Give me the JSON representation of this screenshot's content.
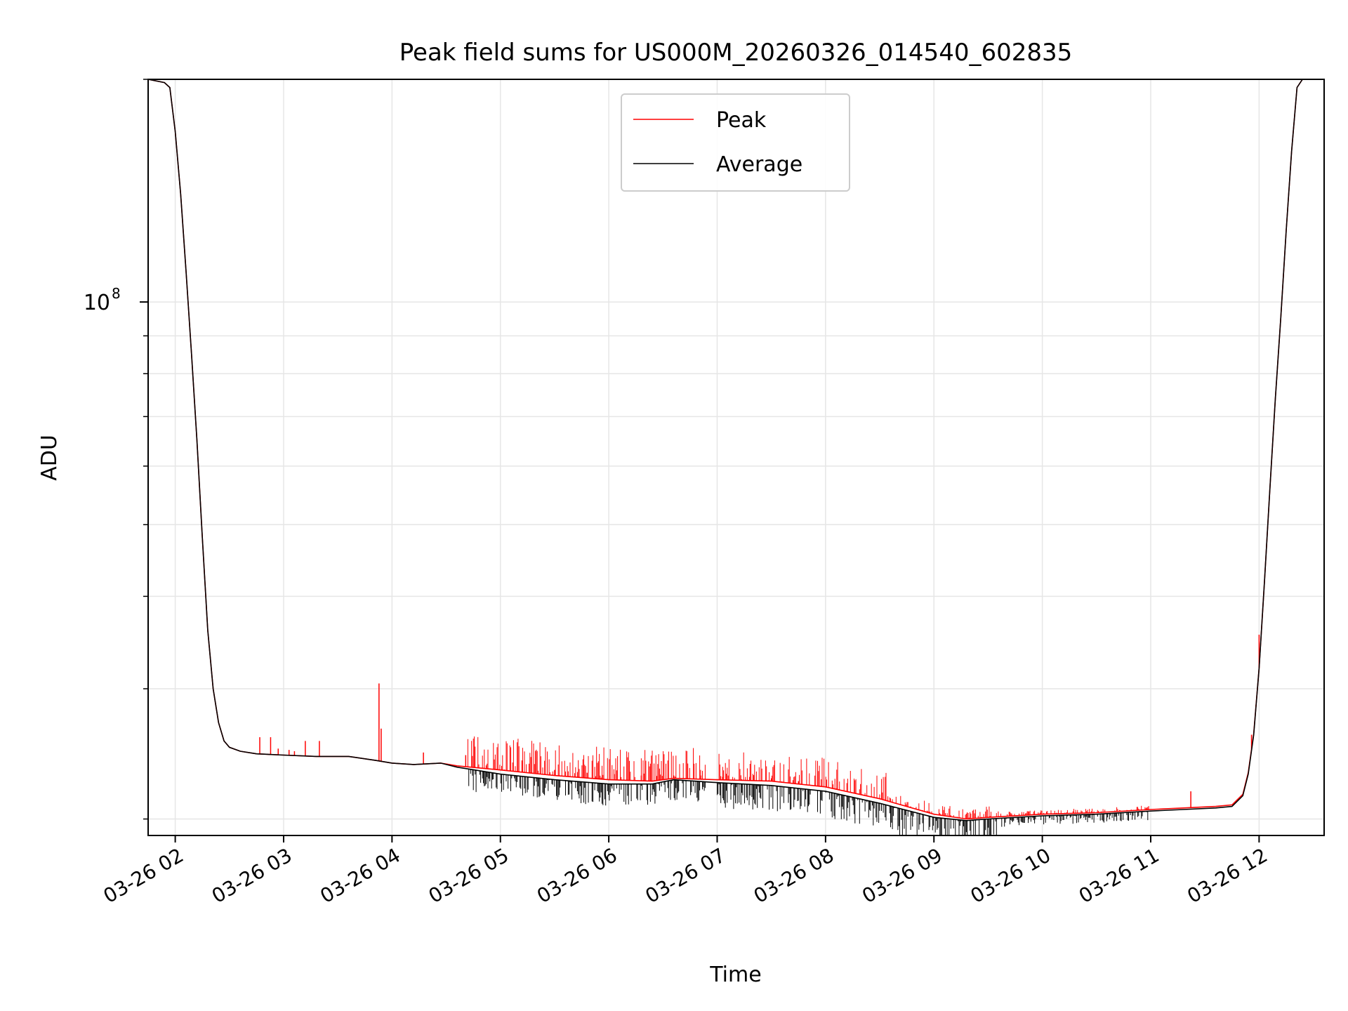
{
  "chart_data": {
    "type": "line",
    "title": "Peak field sums for US000M_20260326_014540_602835",
    "xlabel": "Time",
    "ylabel": "ADU",
    "yscale": "log",
    "ylim": [
      19000000,
      200000000
    ],
    "xlim": [
      1.75,
      12.6
    ],
    "grid": true,
    "legend_position": "upper center",
    "x_ticks": [
      {
        "value": 2,
        "label": "03-26 02"
      },
      {
        "value": 3,
        "label": "03-26 03"
      },
      {
        "value": 4,
        "label": "03-26 04"
      },
      {
        "value": 5,
        "label": "03-26 05"
      },
      {
        "value": 6,
        "label": "03-26 06"
      },
      {
        "value": 7,
        "label": "03-26 07"
      },
      {
        "value": 8,
        "label": "03-26 08"
      },
      {
        "value": 9,
        "label": "03-26 09"
      },
      {
        "value": 10,
        "label": "03-26 10"
      },
      {
        "value": 11,
        "label": "03-26 11"
      },
      {
        "value": 12,
        "label": "03-26 12"
      }
    ],
    "y_major_ticks": [
      {
        "value": 100000000,
        "label": "10",
        "exponent": "8"
      }
    ],
    "y_minor_ticks": [
      20000000,
      30000000,
      40000000,
      50000000,
      60000000,
      70000000,
      80000000,
      90000000,
      200000000
    ],
    "series": [
      {
        "name": "Average",
        "color": "#000000",
        "x": [
          1.75,
          1.9,
          1.95,
          2.0,
          2.05,
          2.1,
          2.15,
          2.2,
          2.25,
          2.3,
          2.35,
          2.4,
          2.45,
          2.5,
          2.6,
          2.75,
          3.0,
          3.3,
          3.6,
          3.85,
          4.0,
          4.2,
          4.45,
          4.6,
          5.0,
          5.5,
          6.0,
          6.4,
          6.6,
          7.0,
          7.5,
          8.0,
          8.5,
          9.0,
          9.3,
          9.5,
          10.0,
          10.5,
          11.0,
          11.3,
          11.6,
          11.75,
          11.85,
          11.9,
          11.95,
          12.0,
          12.05,
          12.1,
          12.15,
          12.2,
          12.25,
          12.3,
          12.35,
          12.4,
          12.6
        ],
        "y": [
          200000000,
          198000000,
          195000000,
          170000000,
          140000000,
          110000000,
          85000000,
          65000000,
          48000000,
          36000000,
          30000000,
          27000000,
          25500000,
          25000000,
          24700000,
          24500000,
          24400000,
          24300000,
          24300000,
          24000000,
          23800000,
          23700000,
          23800000,
          23500000,
          23000000,
          22600000,
          22300000,
          22300000,
          22600000,
          22400000,
          22200000,
          21800000,
          21000000,
          20100000,
          19900000,
          20000000,
          20200000,
          20300000,
          20500000,
          20600000,
          20700000,
          20800000,
          21500000,
          23000000,
          26000000,
          32000000,
          42000000,
          56000000,
          74000000,
          95000000,
          125000000,
          160000000,
          195000000,
          200000000,
          200000000
        ]
      },
      {
        "name": "Peak",
        "color": "#ff0000",
        "x": [
          1.75,
          1.9,
          1.95,
          2.0,
          2.05,
          2.1,
          2.15,
          2.2,
          2.25,
          2.3,
          2.35,
          2.4,
          2.45,
          2.5,
          2.6,
          2.75,
          3.0,
          3.3,
          3.6,
          3.85,
          4.0,
          4.2,
          4.45,
          4.6,
          5.0,
          5.5,
          6.0,
          6.4,
          6.6,
          7.0,
          7.5,
          8.0,
          8.5,
          9.0,
          9.3,
          9.5,
          10.0,
          10.5,
          11.0,
          11.3,
          11.6,
          11.75,
          11.85,
          11.9,
          11.95,
          12.0,
          12.05,
          12.1,
          12.15,
          12.2,
          12.25,
          12.3,
          12.35,
          12.4,
          12.6
        ],
        "y": [
          200000000,
          198000000,
          195000000,
          170000000,
          140000000,
          110000000,
          85000000,
          65000000,
          48000000,
          36000000,
          30000000,
          27000000,
          25500000,
          25000000,
          24700000,
          24500000,
          24400000,
          24300000,
          24300000,
          24000000,
          23800000,
          23700000,
          23800000,
          23600000,
          23300000,
          22900000,
          22600000,
          22500000,
          22700000,
          22600000,
          22500000,
          22100000,
          21300000,
          20300000,
          20000000,
          20100000,
          20300000,
          20400000,
          20600000,
          20700000,
          20800000,
          20900000,
          21600000,
          23100000,
          26100000,
          32000000,
          42000000,
          56000000,
          74000000,
          95000000,
          125000000,
          160000000,
          195000000,
          200000000,
          200000000
        ]
      }
    ],
    "spikes": [
      {
        "x": 2.78,
        "y": 25800000
      },
      {
        "x": 2.88,
        "y": 25800000
      },
      {
        "x": 2.95,
        "y": 24900000
      },
      {
        "x": 3.05,
        "y": 24800000
      },
      {
        "x": 3.1,
        "y": 24700000
      },
      {
        "x": 3.2,
        "y": 25500000
      },
      {
        "x": 3.33,
        "y": 25500000
      },
      {
        "x": 3.88,
        "y": 30500000
      },
      {
        "x": 3.9,
        "y": 26500000
      },
      {
        "x": 4.29,
        "y": 24600000
      },
      {
        "x": 4.68,
        "y": 24400000
      },
      {
        "x": 5.2,
        "y": 24000000
      },
      {
        "x": 5.5,
        "y": 23300000
      },
      {
        "x": 5.8,
        "y": 23100000
      },
      {
        "x": 6.05,
        "y": 23000000
      },
      {
        "x": 6.3,
        "y": 22900000
      },
      {
        "x": 6.6,
        "y": 22900000
      },
      {
        "x": 6.85,
        "y": 22900000
      },
      {
        "x": 7.05,
        "y": 22800000
      },
      {
        "x": 7.3,
        "y": 22800000
      },
      {
        "x": 7.5,
        "y": 22700000
      },
      {
        "x": 7.75,
        "y": 22500000
      },
      {
        "x": 8.1,
        "y": 22000000
      },
      {
        "x": 11.37,
        "y": 21800000
      },
      {
        "x": 11.93,
        "y": 26000000
      },
      {
        "x": 11.97,
        "y": 28500000
      },
      {
        "x": 12.0,
        "y": 35500000
      }
    ],
    "noise_bands": [
      {
        "start": 4.7,
        "end": 6.9,
        "peak_above": 0.045,
        "avg_below": 0.03
      },
      {
        "start": 7.0,
        "end": 8.6,
        "peak_above": 0.04,
        "avg_below": 0.035
      },
      {
        "start": 8.6,
        "end": 9.6,
        "peak_above": 0.015,
        "avg_below": 0.04
      },
      {
        "start": 9.6,
        "end": 11.0,
        "peak_above": 0.006,
        "avg_below": 0.012
      }
    ],
    "legend": [
      {
        "label": "Peak",
        "color": "#ff0000"
      },
      {
        "label": "Average",
        "color": "#000000"
      }
    ]
  }
}
